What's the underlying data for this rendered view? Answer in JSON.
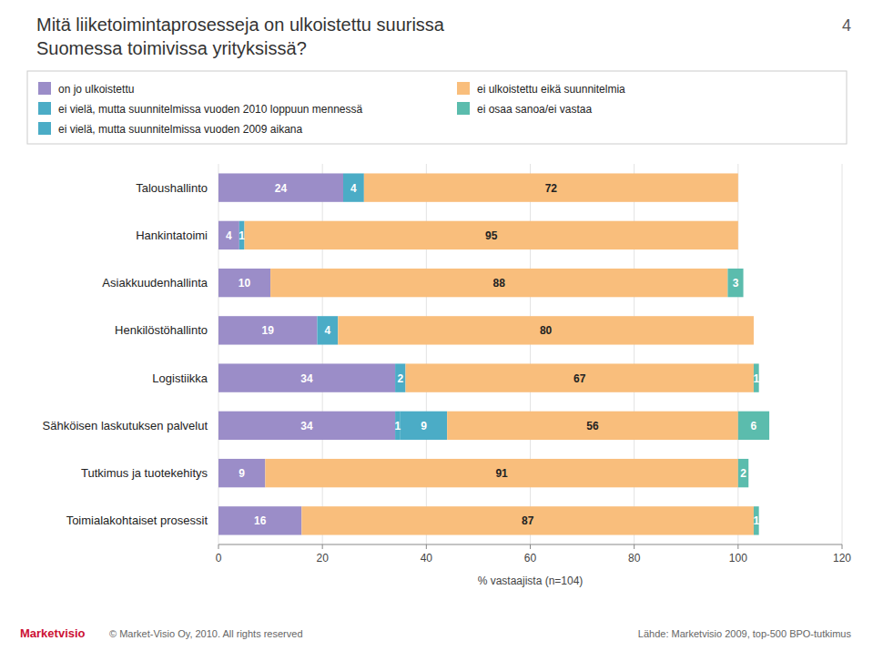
{
  "chart_data": {
    "type": "bar",
    "orientation": "horizontal",
    "stacked": true,
    "data_labels": true,
    "grid": true,
    "legend": "top",
    "title": "Mitä liiketoimintaprosesseja on ulkoistettu suurissa",
    "subtitle": "Suomessa toimivissa yrityksissä?",
    "xlabel": "% vastaajista (n=104)",
    "categories": [
      "Taloushallinto",
      "Hankintatoimi",
      "Asiakkuudenhallinta",
      "Henkilöstöhallinto",
      "Logistiikka",
      "Sähköisen laskutuksen palvelut",
      "Tutkimus ja tuotekehitys",
      "Toimialakohtaiset prosessit"
    ],
    "series": [
      {
        "name": "on jo ulkoistettu",
        "color": "#9b8dc8",
        "values": [
          24,
          4,
          10,
          19,
          34,
          34,
          9,
          16
        ]
      },
      {
        "name": "ei vielä, mutta suunnitelmissa vuoden 2010 loppuun mennessä",
        "color": "#4bacc6",
        "values": [
          4,
          1,
          0,
          4,
          2,
          1,
          0,
          0
        ]
      },
      {
        "name": "ei vielä, mutta suunnitelmissa vuoden 2009 aikana",
        "color": "#4bacc6",
        "values": [
          0,
          0,
          0,
          0,
          0,
          9,
          0,
          0
        ]
      },
      {
        "name": "ei ulkoistettu eikä suunnitelmia",
        "color": "#f9be7c",
        "values": [
          72,
          95,
          88,
          80,
          67,
          56,
          91,
          87
        ]
      },
      {
        "name": "ei osaa sanoa/ei vastaa",
        "color": "#5bbcad",
        "values": [
          0,
          0,
          3,
          0,
          1,
          6,
          2,
          1
        ]
      }
    ],
    "xlim": [
      0,
      120
    ],
    "xticks": [
      0,
      20,
      40,
      60,
      80,
      100,
      120
    ],
    "annotations": [
      "4",
      "© Market-Visio Oy, 2010. All rights reserved",
      "Lähde: Marketvisio 2009, top-500 BPO-tutkimus",
      "Marketvisio"
    ]
  }
}
